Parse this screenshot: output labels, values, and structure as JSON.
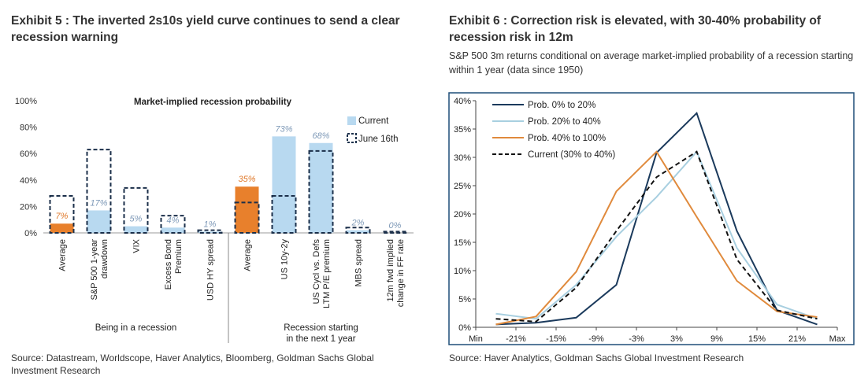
{
  "left": {
    "title": "Exhibit 5 : The inverted 2s10s yield curve continues to send a clear recession warning",
    "source": "Source: Datastream, Worldscope, Haver Analytics, Bloomberg, Goldman Sachs Global Investment Research"
  },
  "right": {
    "title": "Exhibit 6 : Correction risk is elevated, with 30-40% probability of recession risk in 12m",
    "subtitle": "S&P 500 3m returns conditional on average market-implied probability of a recession starting within 1 year (data since 1950)",
    "source": "Source: Haver Analytics, Goldman Sachs Global Investment Research"
  },
  "chart_data": [
    {
      "type": "bar",
      "title": "Market-implied recession probability",
      "ylim": [
        0,
        100
      ],
      "yticks": [
        "0%",
        "20%",
        "40%",
        "60%",
        "80%",
        "100%"
      ],
      "categories": [
        "Average",
        "S&P 500 1-year drawdown",
        "VIX",
        "Excess Bond Premium",
        "USD HY spread",
        "Average",
        "US 10y-2y",
        "US Cycl vs. Defs LTM P/E premium",
        "MBS spread",
        "12m fwd implied change in FF rate"
      ],
      "groups": [
        {
          "label": "Being in a recession",
          "indices": [
            0,
            1,
            2,
            3,
            4
          ]
        },
        {
          "label": "Recession starting in the next 1 year",
          "indices": [
            5,
            6,
            7,
            8,
            9
          ]
        }
      ],
      "series": [
        {
          "name": "Current",
          "values": [
            7,
            17,
            5,
            4,
            1,
            35,
            73,
            68,
            2,
            0
          ],
          "labels": [
            "7%",
            "17%",
            "5%",
            "4%",
            "1%",
            "35%",
            "73%",
            "68%",
            "2%",
            "0%"
          ]
        },
        {
          "name": "June 16th",
          "values": [
            28,
            63,
            34,
            13,
            2,
            23,
            28,
            62,
            4,
            1
          ]
        }
      ],
      "highlight_indices": [
        0,
        5
      ],
      "colors": {
        "current": "#b8d9f0",
        "highlight": "#e8802c",
        "june": "#1b2f4a",
        "label_current": "#7f9ab8",
        "label_highlight": "#e07a2c"
      },
      "legend": "top-right"
    },
    {
      "type": "line",
      "xticks": [
        "Min",
        "-21%",
        "-15%",
        "-9%",
        "-3%",
        "3%",
        "9%",
        "15%",
        "21%",
        "Max"
      ],
      "ylim": [
        0,
        40
      ],
      "yticks": [
        "0%",
        "5%",
        "10%",
        "15%",
        "20%",
        "25%",
        "30%",
        "35%",
        "40%"
      ],
      "series": [
        {
          "name": "Prob. 0% to 20%",
          "color": "#1b3a5c",
          "dash": false,
          "values": [
            0.5,
            0.8,
            1.7,
            7.5,
            30.8,
            37.8,
            17.0,
            3.0,
            0.5
          ]
        },
        {
          "name": "Prob. 20% to 40%",
          "color": "#a8cfe0",
          "dash": false,
          "values": [
            2.4,
            1.5,
            7.5,
            16.0,
            23.0,
            31.0,
            14.0,
            4.0,
            1.5
          ]
        },
        {
          "name": "Prob. 40% to 100%",
          "color": "#e08a3c",
          "dash": false,
          "values": [
            0.5,
            1.9,
            9.8,
            24.0,
            31.0,
            19.5,
            8.2,
            2.8,
            1.8
          ]
        },
        {
          "name": "Current (30% to 40%)",
          "color": "#111111",
          "dash": true,
          "values": [
            1.5,
            1.0,
            7.0,
            17.0,
            26.5,
            31.0,
            12.0,
            3.0,
            1.5
          ]
        }
      ],
      "legend": "top-left"
    }
  ]
}
